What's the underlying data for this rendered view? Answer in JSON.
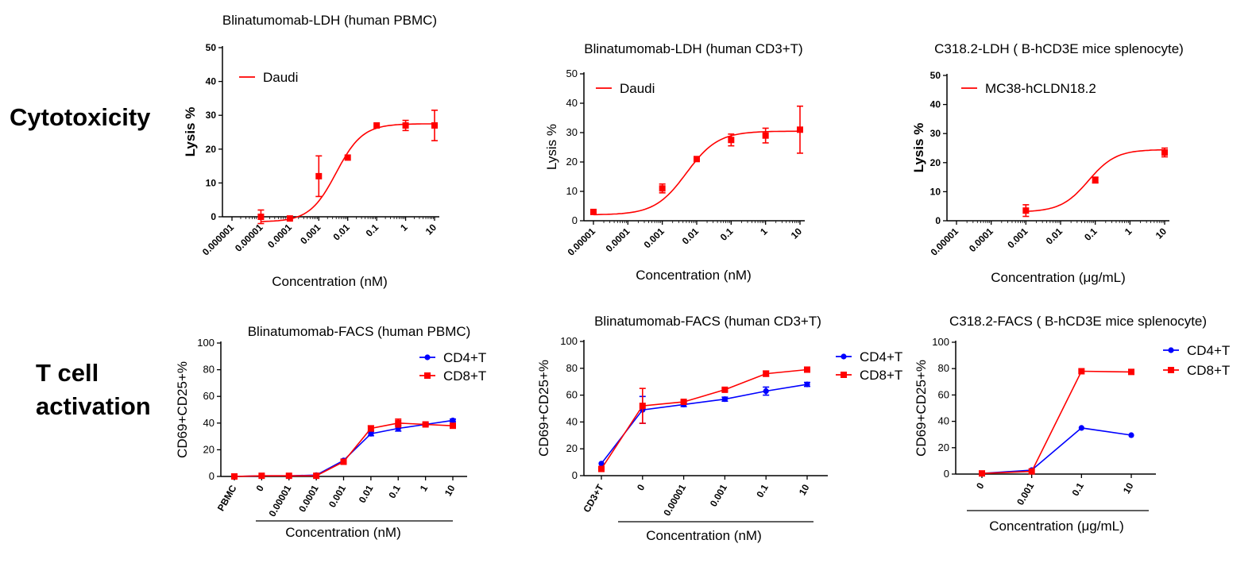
{
  "row_labels": {
    "row1": "Cytotoxicity",
    "row2_line1": "T cell",
    "row2_line2": "activation"
  },
  "colors": {
    "red": "#ff0000",
    "blue": "#0000ff"
  },
  "chart_data": [
    {
      "type": "line",
      "title": "Blinatumomab-LDH (human PBMC)",
      "xlabel": "Concentration (nM)",
      "ylabel": "Lysis %",
      "x_scale": "log",
      "x_ticks": [
        "0.000001",
        "0.00001",
        "0.0001",
        "0.001",
        "0.01",
        "0.1",
        "1",
        "10"
      ],
      "ylim": [
        0,
        50
      ],
      "y_ticks": [
        "0",
        "10",
        "20",
        "30",
        "40",
        "50"
      ],
      "legend_position": "top-left",
      "series": [
        {
          "name": "Daudi",
          "color": "#ff0000",
          "marker": "square",
          "x": [
            1e-05,
            0.0001,
            0.001,
            0.01,
            0.1,
            1,
            10
          ],
          "y": [
            0,
            -0.5,
            12,
            17.5,
            27,
            27,
            27
          ],
          "err": [
            2,
            0,
            6,
            0,
            0,
            1.5,
            4.5
          ]
        }
      ]
    },
    {
      "type": "line",
      "title": "Blinatumomab-LDH (human CD3+T)",
      "xlabel": "Concentration (nM)",
      "ylabel": "Lysis %",
      "x_scale": "log",
      "x_ticks": [
        "0.00001",
        "0.0001",
        "0.001",
        "0.01",
        "0.1",
        "1",
        "10"
      ],
      "ylim": [
        0,
        50
      ],
      "y_ticks": [
        "0",
        "10",
        "20",
        "30",
        "40",
        "50"
      ],
      "legend_position": "top-left",
      "series": [
        {
          "name": "Daudi",
          "color": "#ff0000",
          "marker": "square",
          "x": [
            1e-05,
            0.001,
            0.01,
            0.1,
            1,
            10
          ],
          "y": [
            3,
            11,
            21,
            27.5,
            29,
            31
          ],
          "err": [
            0,
            1.5,
            0,
            2,
            2.5,
            8
          ]
        }
      ]
    },
    {
      "type": "line",
      "title": "C318.2-LDH ( B-hCD3E mice splenocyte)",
      "xlabel": "Concentration (μg/mL)",
      "ylabel": "Lysis %",
      "x_scale": "log",
      "x_ticks": [
        "0.00001",
        "0.0001",
        "0.001",
        "0.01",
        "0.1",
        "1",
        "10"
      ],
      "ylim": [
        0,
        50
      ],
      "y_ticks": [
        "0",
        "10",
        "20",
        "30",
        "40",
        "50"
      ],
      "legend_position": "top-left",
      "series": [
        {
          "name": "MC38-hCLDN18.2",
          "color": "#ff0000",
          "marker": "square",
          "x": [
            0.001,
            0.1,
            10
          ],
          "y": [
            3.5,
            14,
            23.5
          ],
          "err": [
            2,
            1,
            1.5
          ]
        }
      ]
    },
    {
      "type": "line",
      "title": "Blinatumomab-FACS (human PBMC)",
      "xlabel": "Concentration (nM)",
      "ylabel": "CD69+CD25+%",
      "categories": [
        "PBMC",
        "0",
        "0.00001",
        "0.0001",
        "0.001",
        "0.01",
        "0.1",
        "1",
        "10"
      ],
      "ylim": [
        0,
        100
      ],
      "y_ticks": [
        "0",
        "20",
        "40",
        "60",
        "80",
        "100"
      ],
      "legend_position": "top-right",
      "series": [
        {
          "name": "CD4+T",
          "color": "#0000ff",
          "marker": "circle",
          "values": [
            0,
            0.5,
            0.5,
            1,
            12,
            32,
            36,
            39,
            42
          ],
          "err": [
            0,
            0,
            0,
            0,
            1,
            1.5,
            2,
            1,
            1
          ]
        },
        {
          "name": "CD8+T",
          "color": "#ff0000",
          "marker": "square",
          "values": [
            0,
            0.5,
            0.5,
            0.5,
            11,
            36,
            40,
            39,
            38
          ],
          "err": [
            0,
            0,
            0,
            0,
            1,
            2,
            3,
            1,
            1
          ]
        }
      ]
    },
    {
      "type": "line",
      "title": "Blinatumomab-FACS (human CD3+T)",
      "xlabel": "Concentration (nM)",
      "ylabel": "CD69+CD25+%",
      "categories": [
        "CD3+T",
        "0",
        "0.00001",
        "0.001",
        "0.1",
        "10"
      ],
      "ylim": [
        0,
        100
      ],
      "y_ticks": [
        "0",
        "20",
        "40",
        "60",
        "80",
        "100"
      ],
      "legend_position": "right",
      "series": [
        {
          "name": "CD4+T",
          "color": "#0000ff",
          "marker": "circle",
          "values": [
            9,
            49,
            53,
            57,
            63,
            68
          ],
          "err": [
            0,
            10,
            1.5,
            1.5,
            3,
            1.5
          ]
        },
        {
          "name": "CD8+T",
          "color": "#ff0000",
          "marker": "square",
          "values": [
            5,
            52,
            55,
            64,
            76,
            79
          ],
          "err": [
            0,
            13,
            1,
            1,
            2,
            1
          ]
        }
      ]
    },
    {
      "type": "line",
      "title": "C318.2-FACS ( B-hCD3E mice splenocyte)",
      "xlabel": "Concentration (μg/mL)",
      "ylabel": "CD69+CD25+%",
      "categories": [
        "0",
        "0.001",
        "0.1",
        "10"
      ],
      "ylim": [
        0,
        100
      ],
      "y_ticks": [
        "0",
        "20",
        "40",
        "60",
        "80",
        "100"
      ],
      "legend_position": "right",
      "series": [
        {
          "name": "CD4+T",
          "color": "#0000ff",
          "marker": "circle",
          "values": [
            0.5,
            3,
            35,
            29.5
          ],
          "err": [
            0,
            0,
            0,
            0
          ]
        },
        {
          "name": "CD8+T",
          "color": "#ff0000",
          "marker": "square",
          "values": [
            0.5,
            2,
            78,
            77.5
          ],
          "err": [
            0,
            0,
            0,
            0
          ]
        }
      ]
    }
  ]
}
